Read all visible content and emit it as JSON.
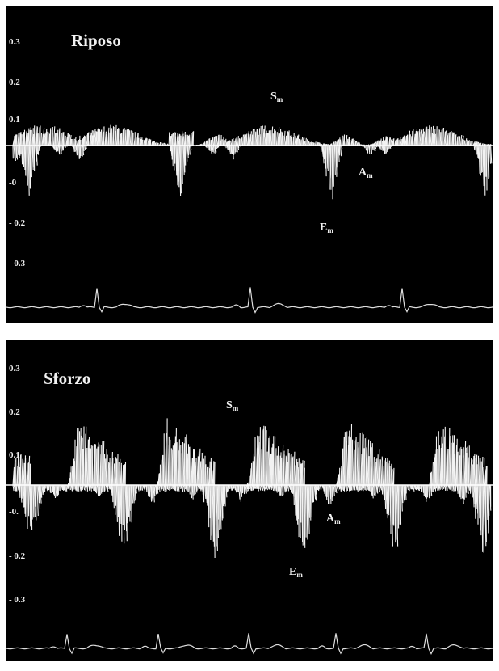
{
  "panels": [
    {
      "title": "Riposo",
      "ticks": [
        "0.3",
        "0.2",
        "0.1",
        "-0",
        "- 0.2",
        "- 0.3"
      ],
      "labels": {
        "s_main": "S",
        "s_sub": "m",
        "a_main": "A",
        "a_sub": "m",
        "e_main": "E",
        "e_sub": "m"
      }
    },
    {
      "title": "Sforzo",
      "ticks": [
        "0.3",
        "0.2",
        "0.1",
        "-0.",
        "- 0.2",
        "- 0.3"
      ],
      "labels": {
        "s_main": "S",
        "s_sub": "m",
        "a_main": "A",
        "a_sub": "m",
        "e_main": "E",
        "e_sub": "m"
      }
    }
  ],
  "colors": {
    "background": "#000000",
    "trace": "#ffffff",
    "ecg": "#dddddd",
    "separator": "#ffffff"
  }
}
